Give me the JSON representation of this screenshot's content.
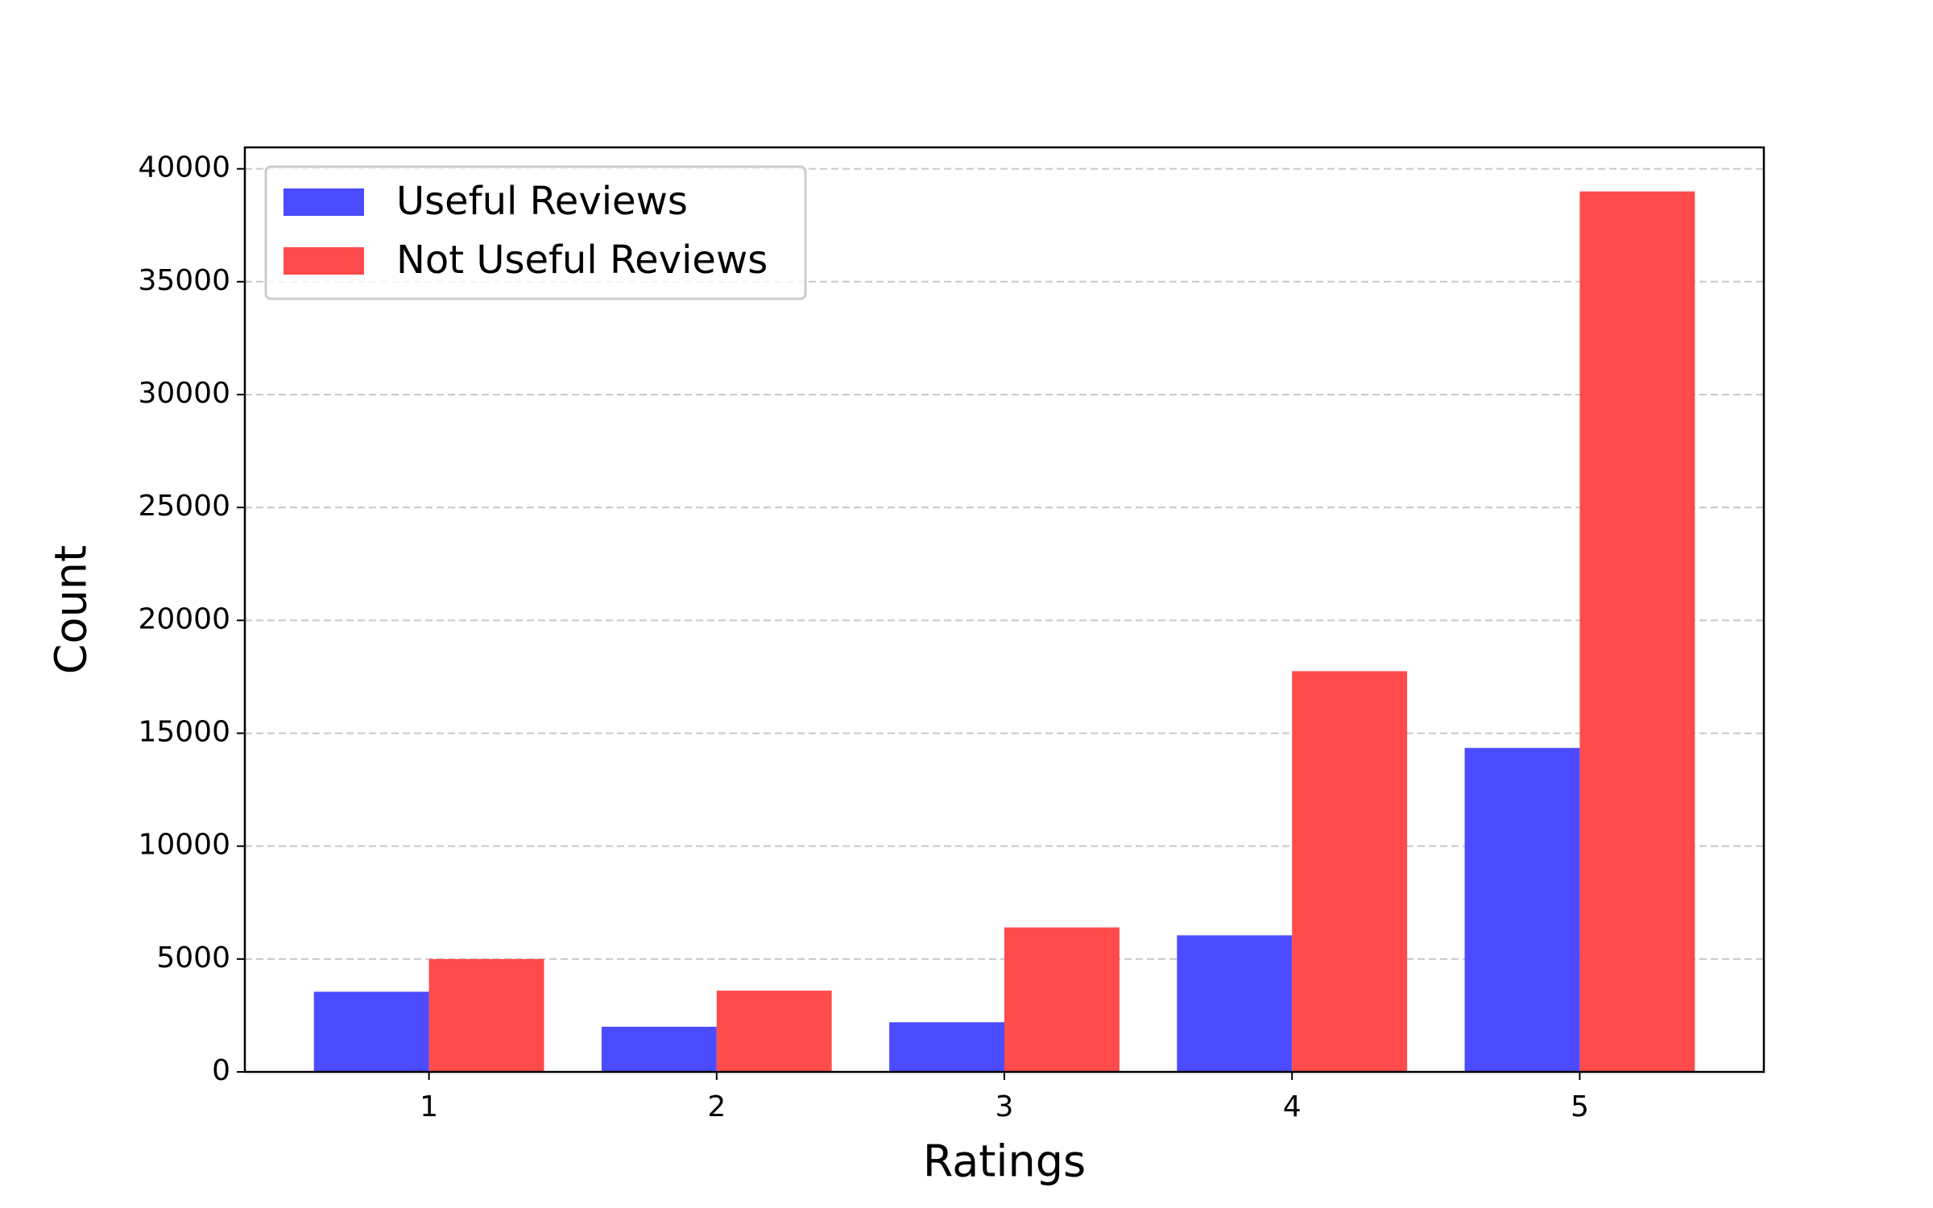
{
  "chart_data": {
    "type": "bar",
    "x_label": "Ratings",
    "y_label": "Count",
    "categories": [
      "1",
      "2",
      "3",
      "4",
      "5"
    ],
    "series": [
      {
        "name": "Useful Reviews",
        "color": "#4b4bff",
        "values": [
          3550,
          2000,
          2200,
          6050,
          14350
        ]
      },
      {
        "name": "Not Useful Reviews",
        "color": "#ff4b4b",
        "values": [
          5000,
          3600,
          6400,
          17750,
          39000
        ]
      }
    ],
    "ylim": [
      0,
      40950
    ],
    "yticks": [
      0,
      5000,
      10000,
      15000,
      20000,
      25000,
      30000,
      35000,
      40000
    ],
    "grid": true,
    "legend": "upper left"
  }
}
